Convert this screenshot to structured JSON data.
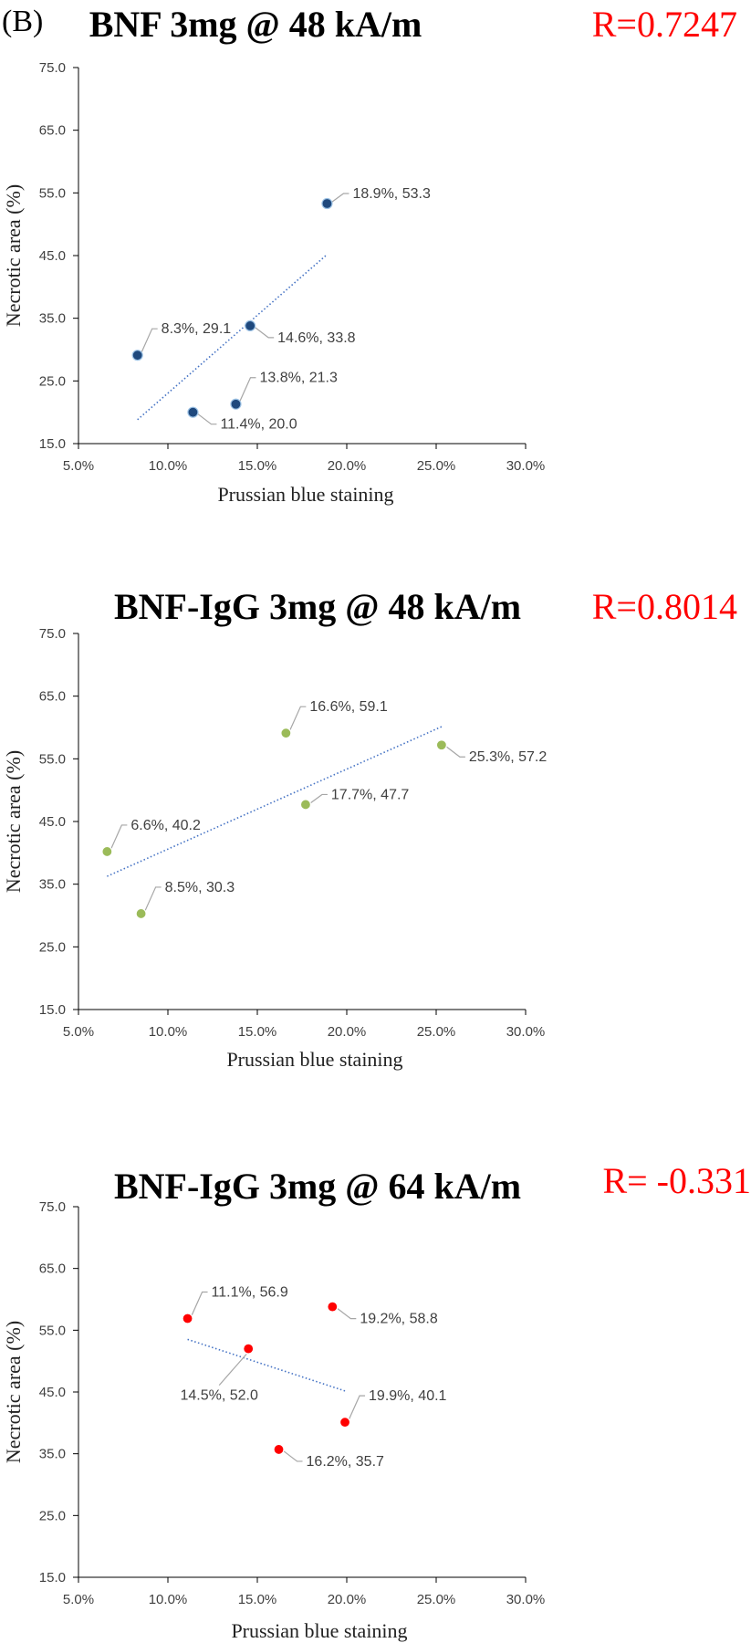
{
  "panel_label": "(B)",
  "colors": {
    "axis": "#000000",
    "leader": "#a6a6a6",
    "trendline": "#4472c4",
    "r_value": "#ff0000"
  },
  "chart_data": [
    {
      "type": "scatter",
      "title": "BNF 3mg @ 48 kA/m",
      "annotation": "R=0.7247",
      "xlabel": "Prussian blue staining",
      "ylabel": "Necrotic area (%)",
      "xlim": [
        0.05,
        0.3
      ],
      "ylim": [
        15,
        75
      ],
      "x_ticks": [
        "5.0%",
        "10.0%",
        "15.0%",
        "20.0%",
        "25.0%",
        "30.0%"
      ],
      "y_ticks": [
        "75.0",
        "65.0",
        "55.0",
        "45.0",
        "35.0",
        "25.0",
        "15.0"
      ],
      "marker_color": "#1f497d",
      "marker_edge": "#9dc3e6",
      "points": [
        {
          "x": 0.189,
          "y": 53.3,
          "label": "18.9%, 53.3",
          "label_pos": "right"
        },
        {
          "x": 0.083,
          "y": 29.1,
          "label": "8.3%, 29.1",
          "label_pos": "up-right"
        },
        {
          "x": 0.146,
          "y": 33.8,
          "label": "14.6%, 33.8",
          "label_pos": "down-right"
        },
        {
          "x": 0.138,
          "y": 21.3,
          "label": "13.8%, 21.3",
          "label_pos": "up-right"
        },
        {
          "x": 0.114,
          "y": 20.0,
          "label": "11.4%, 20.0",
          "label_pos": "down-right"
        }
      ],
      "trendline": true
    },
    {
      "type": "scatter",
      "title": "BNF-IgG 3mg @ 48 kA/m",
      "annotation": "R=0.8014",
      "xlabel": "Prussian blue staining",
      "ylabel": "Necrotic area (%)",
      "xlim": [
        0.05,
        0.3
      ],
      "ylim": [
        15,
        75
      ],
      "x_ticks": [
        "5.0%",
        "10.0%",
        "15.0%",
        "20.0%",
        "25.0%",
        "30.0%"
      ],
      "y_ticks": [
        "75.0",
        "65.0",
        "55.0",
        "45.0",
        "35.0",
        "25.0",
        "15.0"
      ],
      "marker_color": "#9bbb59",
      "marker_edge": "#ffffff",
      "points": [
        {
          "x": 0.166,
          "y": 59.1,
          "label": "16.6%, 59.1",
          "label_pos": "up-right"
        },
        {
          "x": 0.253,
          "y": 57.2,
          "label": "25.3%, 57.2",
          "label_pos": "down-right"
        },
        {
          "x": 0.177,
          "y": 47.7,
          "label": "17.7%, 47.7",
          "label_pos": "right"
        },
        {
          "x": 0.066,
          "y": 40.2,
          "label": "6.6%, 40.2",
          "label_pos": "up-right"
        },
        {
          "x": 0.085,
          "y": 30.3,
          "label": "8.5%, 30.3",
          "label_pos": "up-right"
        }
      ],
      "trendline": true
    },
    {
      "type": "scatter",
      "title": "BNF-IgG 3mg @ 64 kA/m",
      "annotation": "R= -0.331",
      "xlabel": "Prussian blue staining",
      "ylabel": "Necrotic area (%)",
      "xlim": [
        0.05,
        0.3
      ],
      "ylim": [
        15,
        75
      ],
      "x_ticks": [
        "5.0%",
        "10.0%",
        "15.0%",
        "20.0%",
        "25.0%",
        "30.0%"
      ],
      "y_ticks": [
        "75.0",
        "65.0",
        "55.0",
        "45.0",
        "35.0",
        "25.0",
        "15.0"
      ],
      "marker_color": "#ff0000",
      "marker_edge": "#ffffff",
      "points": [
        {
          "x": 0.111,
          "y": 56.9,
          "label": "11.1%, 56.9",
          "label_pos": "up-right"
        },
        {
          "x": 0.192,
          "y": 58.8,
          "label": "19.2%, 58.8",
          "label_pos": "down-right"
        },
        {
          "x": 0.145,
          "y": 52.0,
          "label": "14.5%, 52.0",
          "label_pos": "down-left"
        },
        {
          "x": 0.199,
          "y": 40.1,
          "label": "19.9%, 40.1",
          "label_pos": "up-right"
        },
        {
          "x": 0.162,
          "y": 35.7,
          "label": "16.2%, 35.7",
          "label_pos": "down-right"
        }
      ],
      "trendline": true
    }
  ]
}
